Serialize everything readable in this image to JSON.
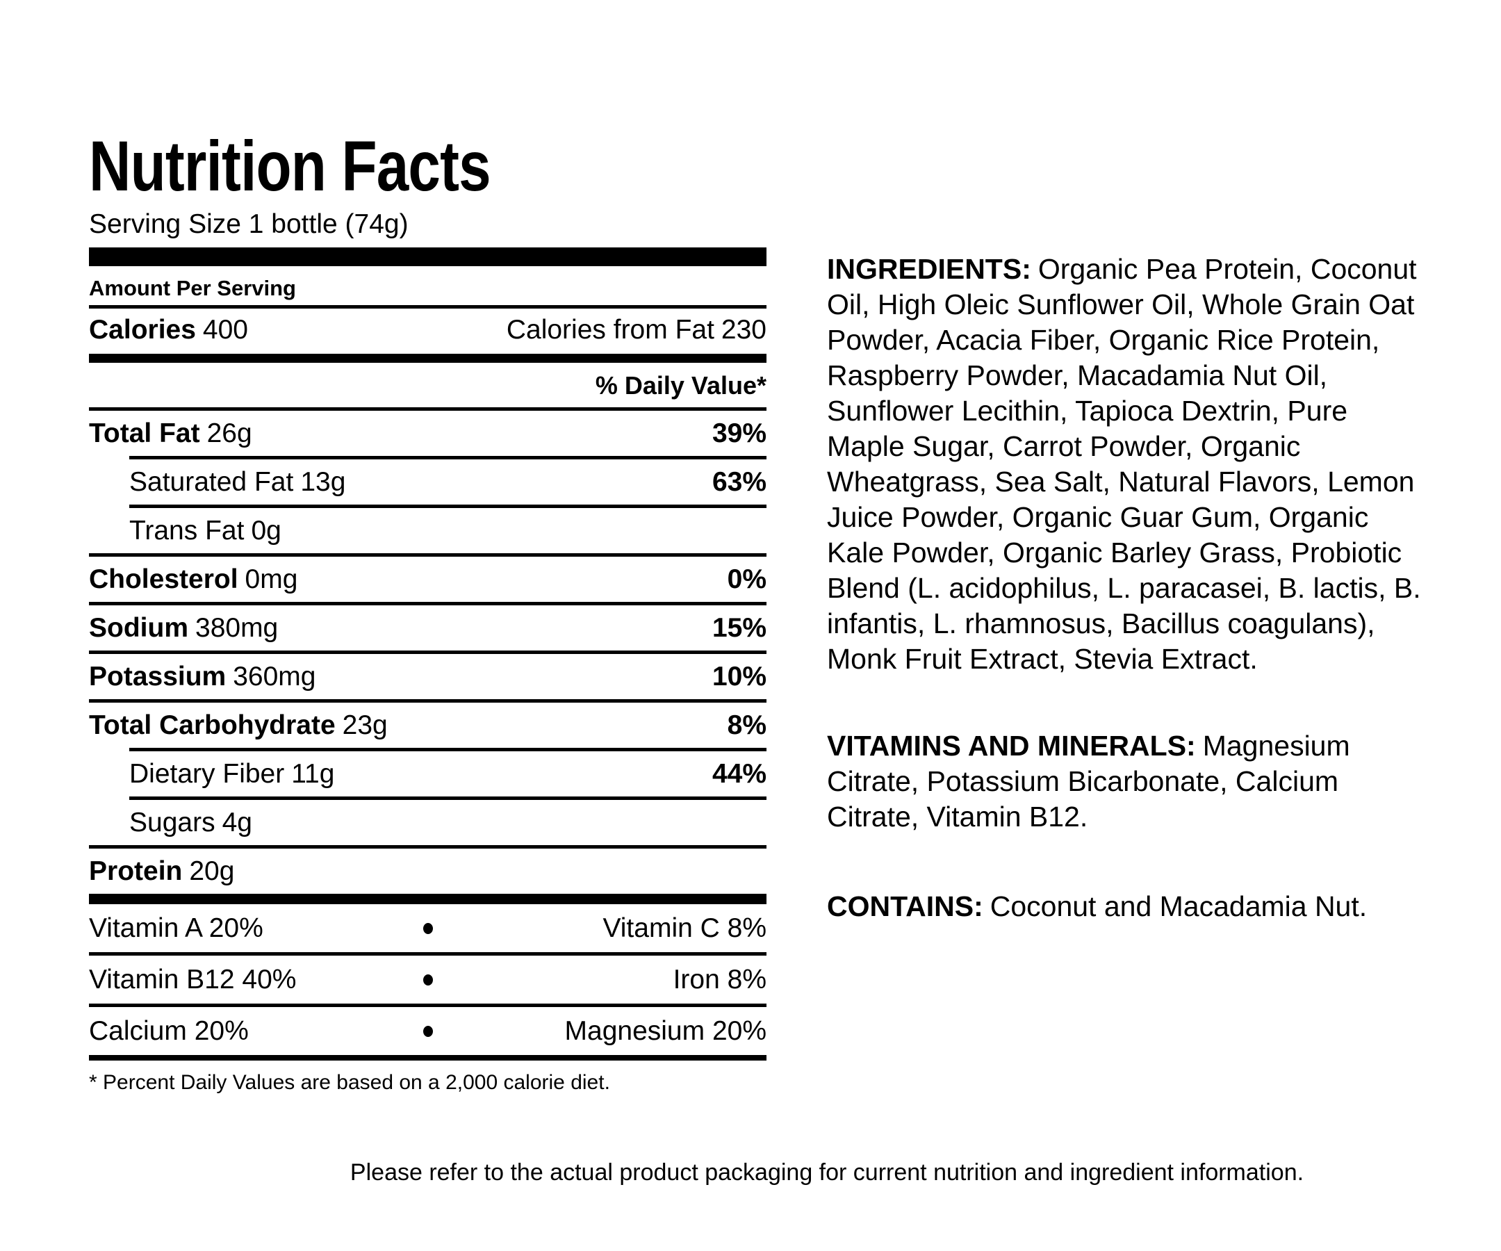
{
  "colors": {
    "text": "#000000",
    "background": "#ffffff"
  },
  "label": {
    "title": "Nutrition Facts",
    "serving_size": "Serving Size 1 bottle (74g)",
    "amount_per_serving": "Amount Per Serving",
    "calories": {
      "label": "Calories",
      "value": "400",
      "from_fat_label": "Calories from Fat",
      "from_fat_value": "230"
    },
    "daily_value_header": "% Daily Value*",
    "nutrients": [
      {
        "name": "Total Fat",
        "amount": "26g",
        "dv": "39%"
      },
      {
        "name": "Saturated Fat",
        "amount": "13g",
        "dv": "63%"
      },
      {
        "name": "Trans Fat",
        "amount": "0g",
        "dv": ""
      },
      {
        "name": "Cholesterol",
        "amount": "0mg",
        "dv": "0%"
      },
      {
        "name": "Sodium",
        "amount": "380mg",
        "dv": "15%"
      },
      {
        "name": "Potassium",
        "amount": "360mg",
        "dv": "10%"
      },
      {
        "name": "Total Carbohydrate",
        "amount": "23g",
        "dv": "8%"
      },
      {
        "name": "Dietary Fiber",
        "amount": "11g",
        "dv": "44%"
      },
      {
        "name": "Sugars",
        "amount": "4g",
        "dv": ""
      },
      {
        "name": "Protein",
        "amount": "20g",
        "dv": ""
      }
    ],
    "vitamins": [
      {
        "left": "Vitamin A 20%",
        "right": "Vitamin C 8%"
      },
      {
        "left": "Vitamin B12 40%",
        "right": "Iron 8%"
      },
      {
        "left": "Calcium 20%",
        "right": "Magnesium 20%"
      }
    ],
    "footnote": "* Percent Daily Values are based on a 2,000 calorie diet."
  },
  "ingredients": {
    "label": "INGREDIENTS:",
    "text": "Organic Pea Protein, Coconut Oil, High Oleic Sunflower Oil, Whole Grain Oat Powder, Acacia Fiber, Organic Rice Protein, Raspberry Powder, Macadamia Nut Oil, Sunflower Lecithin, Tapioca Dextrin, Pure Maple Sugar, Carrot Powder, Organic Wheatgrass, Sea Salt, Natural Flavors, Lemon Juice Powder, Organic Guar Gum, Organic Kale Powder, Organic Barley Grass, Probiotic Blend (L. acidophilus, L. paracasei, B. lactis, B. infantis, L. rhamnosus, Bacillus coagulans), Monk Fruit Extract, Stevia Extract."
  },
  "vitamins_minerals": {
    "label": "VITAMINS AND MINERALS:",
    "text": "Magnesium Citrate, Potassium Bicarbonate, Calcium Citrate, Vitamin B12."
  },
  "contains": {
    "label": "CONTAINS:",
    "text": "Coconut and Macadamia Nut."
  },
  "footer": "Please refer to the actual product packaging for current nutrition and ingredient information."
}
